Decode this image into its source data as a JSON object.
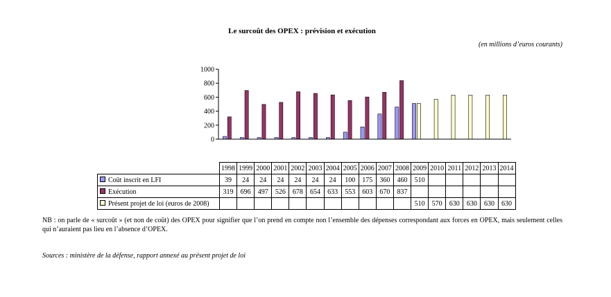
{
  "chart_data": {
    "type": "bar",
    "title": "Le surcoût des OPEX : prévision et exécution",
    "unit_note": "(en millions d’euros courants)",
    "categories": [
      "1998",
      "1999",
      "2000",
      "2001",
      "2002",
      "2003",
      "2004",
      "2005",
      "2006",
      "2007",
      "2008",
      "2009",
      "2010",
      "2011",
      "2012",
      "2013",
      "2014"
    ],
    "series": [
      {
        "name": "Coût inscrit en LFI",
        "color": "#9999ff",
        "values": [
          39,
          24,
          24,
          24,
          24,
          24,
          24,
          100,
          175,
          360,
          460,
          510,
          null,
          null,
          null,
          null,
          null
        ]
      },
      {
        "name": "Exécution",
        "color": "#993366",
        "values": [
          319,
          696,
          497,
          526,
          678,
          654,
          633,
          553,
          603,
          670,
          837,
          null,
          null,
          null,
          null,
          null,
          null
        ]
      },
      {
        "name": "Présent projet de loi (euros de 2008)",
        "color": "#ffffcc",
        "values": [
          null,
          null,
          null,
          null,
          null,
          null,
          null,
          null,
          null,
          null,
          null,
          510,
          570,
          630,
          630,
          630,
          630
        ]
      }
    ],
    "ylim": [
      0,
      1000
    ],
    "yticks": [
      0,
      200,
      400,
      600,
      800,
      1000
    ],
    "grid": false,
    "legend": "data table below chart"
  },
  "note": "NB : on parle de « surcoût » (et non de coût) des OPEX pour signifier que l’on prend en compte non l’ensemble des dépenses correspondant aux forces en OPEX, mais seulement celles qui n’auraient pas lieu en l’absence d’OPEX.",
  "source": "Sources : ministère de la défense, rapport annexé au présent projet de loi"
}
